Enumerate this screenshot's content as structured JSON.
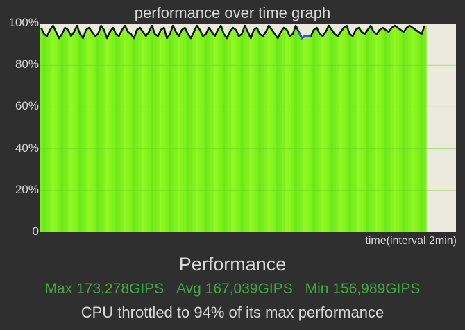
{
  "header": {
    "title": "performance over time graph"
  },
  "chart_data": {
    "type": "area",
    "title": "performance over time graph",
    "xlabel": "time(interval 2min)",
    "ylabel": "",
    "ylim": [
      0,
      100
    ],
    "y_tick_labels": [
      "100%",
      "80%",
      "60%",
      "40%",
      "20%",
      "0"
    ],
    "y_ticks": [
      100,
      80,
      60,
      40,
      20,
      0
    ],
    "grid": true,
    "fill_color": "#7cf21c",
    "line_color": "#111111",
    "highlight_color": "#3a4fd6",
    "background_color": "#ece9de",
    "values": [
      98,
      95,
      94,
      97,
      99,
      96,
      93,
      95,
      98,
      97,
      94,
      96,
      99,
      95,
      93,
      97,
      98,
      96,
      94,
      95,
      99,
      97,
      93,
      96,
      98,
      95,
      94,
      97,
      99,
      96,
      95,
      93,
      97,
      98,
      96,
      94,
      96,
      99,
      95,
      94,
      97,
      98,
      93,
      95,
      99,
      96,
      94,
      97,
      98,
      95,
      93,
      96,
      99,
      97,
      94,
      95,
      98,
      96,
      94,
      97,
      99,
      95,
      93,
      96,
      98,
      97,
      94,
      95,
      99,
      96,
      93,
      97,
      98,
      95,
      94,
      96,
      99,
      97,
      95,
      93,
      96,
      98,
      97,
      94,
      95,
      99,
      96,
      93,
      94,
      94,
      94,
      97,
      98,
      95,
      94,
      96,
      99,
      97,
      95,
      94,
      96,
      98,
      99,
      95,
      94,
      97,
      98,
      96,
      95,
      97,
      99,
      96,
      95,
      97,
      98,
      97,
      96,
      98,
      99,
      98,
      97,
      96,
      98,
      99,
      98,
      97,
      96,
      95,
      99
    ],
    "highlight_range": [
      86,
      90
    ]
  },
  "footer": {
    "heading": "Performance",
    "max": "Max 173,278GIPS",
    "avg": "Avg 167,039GIPS",
    "min": "Min 156,989GIPS",
    "throttle": "CPU throttled to 94% of its max performance",
    "stats_color": "#3faa3f"
  }
}
